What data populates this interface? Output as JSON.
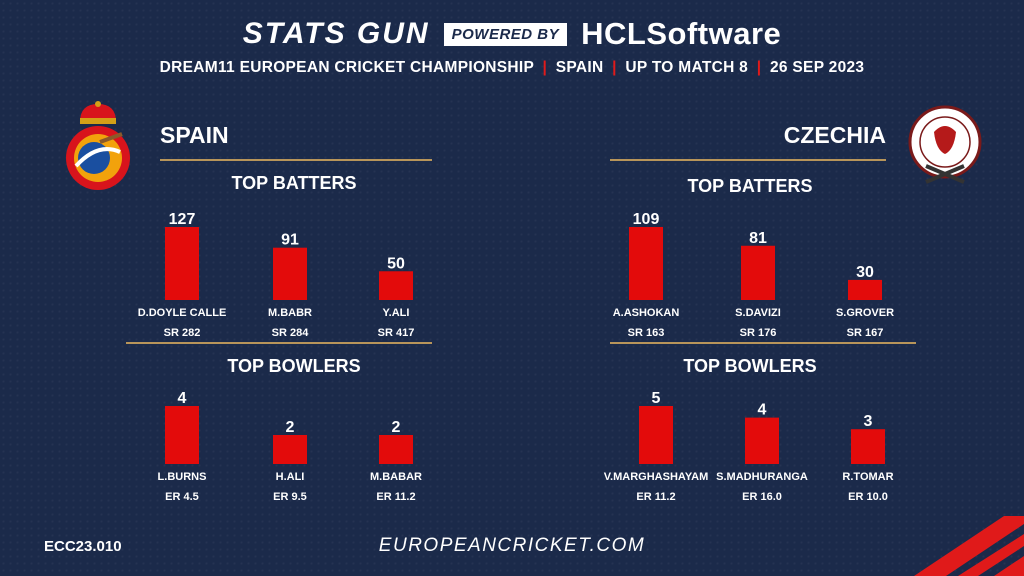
{
  "header": {
    "brand_left": "STATS GUN",
    "brand_mid": "POWERED BY",
    "brand_right": "HCLSoftware",
    "subtitle_parts": [
      "DREAM11 EUROPEAN CRICKET CHAMPIONSHIP",
      "SPAIN",
      "UP TO MATCH 8",
      "26 SEP 2023"
    ]
  },
  "colors": {
    "bar": "#e30b0b",
    "accent_line": "#b8955a",
    "background": "#1b2a4a"
  },
  "teams": {
    "left": {
      "name": "SPAIN"
    },
    "right": {
      "name": "CZECHIA"
    }
  },
  "footer": {
    "code": "ECC23.010",
    "url": "EUROPEANCRICKET.COM"
  },
  "chart_data": [
    {
      "type": "bar",
      "title": "TOP BATTERS",
      "categories": [
        "D.DOYLE CALLE",
        "M.BABR",
        "Y.ALI"
      ],
      "values": [
        127,
        91,
        50
      ],
      "sublabels": [
        "SR 282",
        "SR 284",
        "SR 417"
      ],
      "ylim": [
        0,
        127
      ]
    },
    {
      "type": "bar",
      "title": "TOP BATTERS",
      "categories": [
        "A.ASHOKAN",
        "S.DAVIZI",
        "S.GROVER"
      ],
      "values": [
        109,
        81,
        30
      ],
      "sublabels": [
        "SR 163",
        "SR 176",
        "SR 167"
      ],
      "ylim": [
        0,
        109
      ]
    },
    {
      "type": "bar",
      "title": "TOP BOWLERS",
      "categories": [
        "L.BURNS",
        "H.ALI",
        "M.BABAR"
      ],
      "values": [
        4,
        2,
        2
      ],
      "sublabels": [
        "ER 4.5",
        "ER 9.5",
        "ER 11.2"
      ],
      "ylim": [
        0,
        4
      ]
    },
    {
      "type": "bar",
      "title": "TOP BOWLERS",
      "categories": [
        "V.MARGHASHAYAM",
        "S.MADHURANGA",
        "R.TOMAR"
      ],
      "values": [
        5,
        4,
        3
      ],
      "sublabels": [
        "ER 11.2",
        "ER 16.0",
        "ER 10.0"
      ],
      "ylim": [
        0,
        5
      ]
    }
  ]
}
